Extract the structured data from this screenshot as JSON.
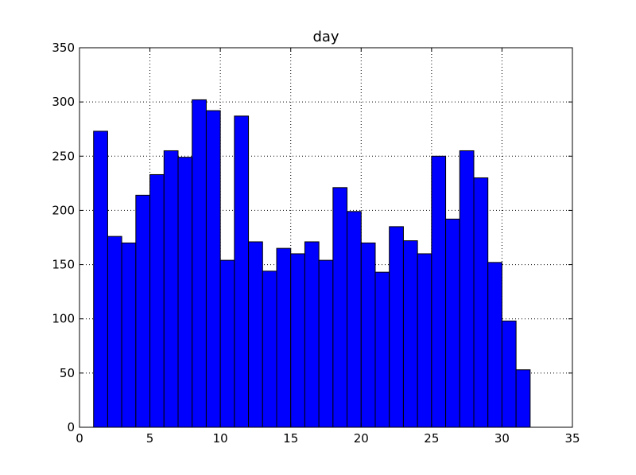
{
  "chart_data": {
    "type": "bar",
    "title": "day",
    "xlabel": "",
    "ylabel": "",
    "xlim": [
      0,
      35
    ],
    "ylim": [
      0,
      350
    ],
    "xticks": [
      0,
      5,
      10,
      15,
      20,
      25,
      30,
      35
    ],
    "yticks": [
      0,
      50,
      100,
      150,
      200,
      250,
      300,
      350
    ],
    "grid": true,
    "bar_color": "#0000ff",
    "bins": [
      {
        "x0": 1.0,
        "x1": 2.0,
        "value": 273
      },
      {
        "x0": 2.0,
        "x1": 3.0,
        "value": 176
      },
      {
        "x0": 3.0,
        "x1": 4.0,
        "value": 170
      },
      {
        "x0": 4.0,
        "x1": 5.0,
        "value": 214
      },
      {
        "x0": 5.0,
        "x1": 6.0,
        "value": 233
      },
      {
        "x0": 6.0,
        "x1": 7.0,
        "value": 255
      },
      {
        "x0": 7.0,
        "x1": 8.0,
        "value": 249
      },
      {
        "x0": 8.0,
        "x1": 9.0,
        "value": 302
      },
      {
        "x0": 9.0,
        "x1": 10.0,
        "value": 292
      },
      {
        "x0": 10.0,
        "x1": 11.0,
        "value": 154
      },
      {
        "x0": 11.0,
        "x1": 12.0,
        "value": 287
      },
      {
        "x0": 12.0,
        "x1": 13.0,
        "value": 171
      },
      {
        "x0": 13.0,
        "x1": 14.0,
        "value": 144
      },
      {
        "x0": 14.0,
        "x1": 15.0,
        "value": 165
      },
      {
        "x0": 15.0,
        "x1": 16.0,
        "value": 160
      },
      {
        "x0": 16.0,
        "x1": 17.0,
        "value": 171
      },
      {
        "x0": 17.0,
        "x1": 18.0,
        "value": 154
      },
      {
        "x0": 18.0,
        "x1": 19.0,
        "value": 221
      },
      {
        "x0": 19.0,
        "x1": 20.0,
        "value": 199
      },
      {
        "x0": 20.0,
        "x1": 21.0,
        "value": 170
      },
      {
        "x0": 21.0,
        "x1": 22.0,
        "value": 143
      },
      {
        "x0": 22.0,
        "x1": 23.0,
        "value": 185
      },
      {
        "x0": 23.0,
        "x1": 24.0,
        "value": 172
      },
      {
        "x0": 24.0,
        "x1": 25.0,
        "value": 160
      },
      {
        "x0": 25.0,
        "x1": 26.0,
        "value": 250
      },
      {
        "x0": 26.0,
        "x1": 27.0,
        "value": 192
      },
      {
        "x0": 27.0,
        "x1": 28.0,
        "value": 255
      },
      {
        "x0": 28.0,
        "x1": 29.0,
        "value": 230
      },
      {
        "x0": 29.0,
        "x1": 30.0,
        "value": 152
      },
      {
        "x0": 30.0,
        "x1": 31.0,
        "value": 98
      },
      {
        "x0": 31.0,
        "x1": 32.0,
        "value": 53
      }
    ]
  }
}
